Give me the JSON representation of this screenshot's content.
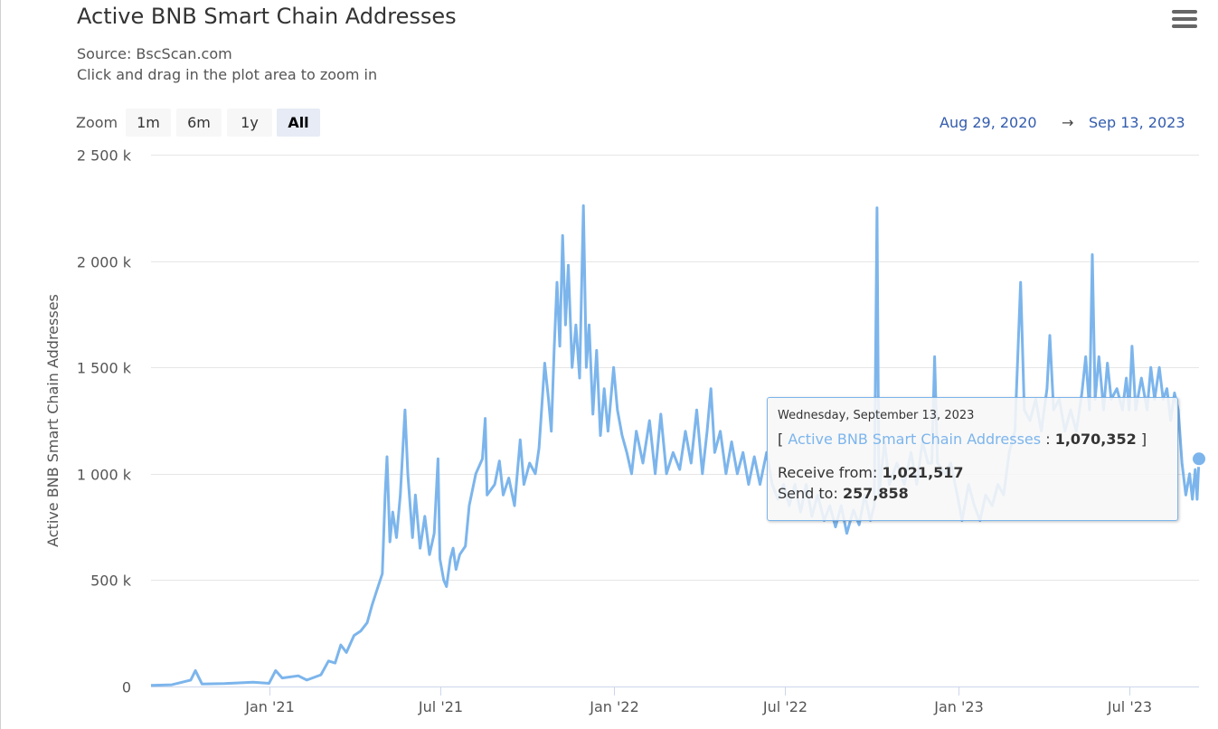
{
  "header": {
    "title": "Active BNB Smart Chain Addresses",
    "source": "Source: BscScan.com",
    "hint": "Click and drag in the plot area to zoom in"
  },
  "range_selector": {
    "zoom_label": "Zoom",
    "buttons": [
      {
        "label": "1m",
        "active": false
      },
      {
        "label": "6m",
        "active": false
      },
      {
        "label": "1y",
        "active": false
      },
      {
        "label": "All",
        "active": true
      }
    ],
    "from": "Aug 29, 2020",
    "arrow": "→",
    "to": "Sep 13, 2023"
  },
  "tooltip": {
    "date": "Wednesday, September 13, 2023",
    "open_bracket": "[",
    "series_name": "Active BNB Smart Chain Addresses",
    "sep": ":",
    "value": "1,070,352",
    "close_bracket": "]",
    "receive_label": "Receive from:",
    "receive_value": "1,021,517",
    "send_label": "Send to:",
    "send_value": "257,858"
  },
  "chart_data": {
    "type": "line",
    "title": "Active BNB Smart Chain Addresses",
    "subtitle": "Source: BscScan.com",
    "ylabel": "Active BNB Smart Chain Addresses",
    "xlabel": "",
    "x_range": [
      "2020-08-29",
      "2023-09-13"
    ],
    "ylim": [
      0,
      2500000
    ],
    "y_ticks": [
      {
        "value": 0,
        "label": "0"
      },
      {
        "value": 500000,
        "label": "500 k"
      },
      {
        "value": 1000000,
        "label": "1 000 k"
      },
      {
        "value": 1500000,
        "label": "1 500 k"
      },
      {
        "value": 2000000,
        "label": "2 000 k"
      },
      {
        "value": 2500000,
        "label": "2 500 k"
      }
    ],
    "x_ticks": [
      {
        "date": "2021-01-01",
        "label": "Jan '21"
      },
      {
        "date": "2021-07-01",
        "label": "Jul '21"
      },
      {
        "date": "2022-01-01",
        "label": "Jan '22"
      },
      {
        "date": "2022-07-01",
        "label": "Jul '22"
      },
      {
        "date": "2023-01-01",
        "label": "Jan '23"
      },
      {
        "date": "2023-07-01",
        "label": "Jul '23"
      }
    ],
    "grid": true,
    "color": "#7cb5ec",
    "series": [
      {
        "values": [
          [
            "2020-08-29",
            5000
          ],
          [
            "2020-09-20",
            8000
          ],
          [
            "2020-10-10",
            30000
          ],
          [
            "2020-10-15",
            75000
          ],
          [
            "2020-10-22",
            12000
          ],
          [
            "2020-11-15",
            14000
          ],
          [
            "2020-12-15",
            20000
          ],
          [
            "2021-01-01",
            15000
          ],
          [
            "2021-01-08",
            75000
          ],
          [
            "2021-01-15",
            40000
          ],
          [
            "2021-02-01",
            50000
          ],
          [
            "2021-02-10",
            30000
          ],
          [
            "2021-02-25",
            55000
          ],
          [
            "2021-03-05",
            120000
          ],
          [
            "2021-03-12",
            110000
          ],
          [
            "2021-03-18",
            195000
          ],
          [
            "2021-03-24",
            160000
          ],
          [
            "2021-04-01",
            240000
          ],
          [
            "2021-04-08",
            260000
          ],
          [
            "2021-04-15",
            300000
          ],
          [
            "2021-04-20",
            380000
          ],
          [
            "2021-04-25",
            450000
          ],
          [
            "2021-05-01",
            530000
          ],
          [
            "2021-05-04",
            900000
          ],
          [
            "2021-05-06",
            1080000
          ],
          [
            "2021-05-09",
            680000
          ],
          [
            "2021-05-12",
            820000
          ],
          [
            "2021-05-16",
            700000
          ],
          [
            "2021-05-20",
            900000
          ],
          [
            "2021-05-25",
            1300000
          ],
          [
            "2021-05-28",
            1000000
          ],
          [
            "2021-06-02",
            700000
          ],
          [
            "2021-06-05",
            900000
          ],
          [
            "2021-06-10",
            650000
          ],
          [
            "2021-06-15",
            800000
          ],
          [
            "2021-06-20",
            620000
          ],
          [
            "2021-06-25",
            720000
          ],
          [
            "2021-06-29",
            1070000
          ],
          [
            "2021-07-01",
            600000
          ],
          [
            "2021-07-05",
            500000
          ],
          [
            "2021-07-08",
            470000
          ],
          [
            "2021-07-12",
            600000
          ],
          [
            "2021-07-15",
            650000
          ],
          [
            "2021-07-18",
            550000
          ],
          [
            "2021-07-22",
            620000
          ],
          [
            "2021-07-28",
            660000
          ],
          [
            "2021-08-01",
            850000
          ],
          [
            "2021-08-08",
            1000000
          ],
          [
            "2021-08-15",
            1070000
          ],
          [
            "2021-08-18",
            1260000
          ],
          [
            "2021-08-20",
            900000
          ],
          [
            "2021-08-28",
            950000
          ],
          [
            "2021-09-02",
            1060000
          ],
          [
            "2021-09-06",
            900000
          ],
          [
            "2021-09-12",
            980000
          ],
          [
            "2021-09-18",
            850000
          ],
          [
            "2021-09-24",
            1160000
          ],
          [
            "2021-09-28",
            950000
          ],
          [
            "2021-10-04",
            1050000
          ],
          [
            "2021-10-10",
            1000000
          ],
          [
            "2021-10-14",
            1120000
          ],
          [
            "2021-10-20",
            1520000
          ],
          [
            "2021-10-24",
            1350000
          ],
          [
            "2021-10-27",
            1200000
          ],
          [
            "2021-10-30",
            1580000
          ],
          [
            "2021-11-02",
            1900000
          ],
          [
            "2021-11-05",
            1600000
          ],
          [
            "2021-11-08",
            2120000
          ],
          [
            "2021-11-11",
            1700000
          ],
          [
            "2021-11-14",
            1980000
          ],
          [
            "2021-11-18",
            1500000
          ],
          [
            "2021-11-22",
            1700000
          ],
          [
            "2021-11-26",
            1450000
          ],
          [
            "2021-11-30",
            2260000
          ],
          [
            "2021-12-03",
            1500000
          ],
          [
            "2021-12-06",
            1700000
          ],
          [
            "2021-12-10",
            1280000
          ],
          [
            "2021-12-14",
            1580000
          ],
          [
            "2021-12-18",
            1180000
          ],
          [
            "2021-12-22",
            1400000
          ],
          [
            "2021-12-26",
            1200000
          ],
          [
            "2022-01-01",
            1500000
          ],
          [
            "2022-01-05",
            1300000
          ],
          [
            "2022-01-10",
            1180000
          ],
          [
            "2022-01-15",
            1100000
          ],
          [
            "2022-01-20",
            1000000
          ],
          [
            "2022-01-25",
            1200000
          ],
          [
            "2022-02-01",
            1050000
          ],
          [
            "2022-02-08",
            1250000
          ],
          [
            "2022-02-14",
            1000000
          ],
          [
            "2022-02-20",
            1280000
          ],
          [
            "2022-02-26",
            1000000
          ],
          [
            "2022-03-05",
            1100000
          ],
          [
            "2022-03-12",
            1020000
          ],
          [
            "2022-03-18",
            1200000
          ],
          [
            "2022-03-24",
            1050000
          ],
          [
            "2022-03-30",
            1300000
          ],
          [
            "2022-04-05",
            1000000
          ],
          [
            "2022-04-10",
            1200000
          ],
          [
            "2022-04-14",
            1400000
          ],
          [
            "2022-04-18",
            1100000
          ],
          [
            "2022-04-24",
            1200000
          ],
          [
            "2022-04-30",
            1000000
          ],
          [
            "2022-05-06",
            1150000
          ],
          [
            "2022-05-12",
            1000000
          ],
          [
            "2022-05-18",
            1100000
          ],
          [
            "2022-05-24",
            950000
          ],
          [
            "2022-05-30",
            1080000
          ],
          [
            "2022-06-05",
            950000
          ],
          [
            "2022-06-12",
            1100000
          ],
          [
            "2022-06-18",
            950000
          ],
          [
            "2022-06-24",
            880000
          ],
          [
            "2022-06-30",
            950000
          ],
          [
            "2022-07-06",
            850000
          ],
          [
            "2022-07-12",
            950000
          ],
          [
            "2022-07-18",
            820000
          ],
          [
            "2022-07-24",
            950000
          ],
          [
            "2022-07-30",
            800000
          ],
          [
            "2022-08-05",
            900000
          ],
          [
            "2022-08-12",
            780000
          ],
          [
            "2022-08-18",
            850000
          ],
          [
            "2022-08-24",
            750000
          ],
          [
            "2022-08-30",
            850000
          ],
          [
            "2022-09-05",
            720000
          ],
          [
            "2022-09-12",
            830000
          ],
          [
            "2022-09-18",
            760000
          ],
          [
            "2022-09-24",
            900000
          ],
          [
            "2022-09-30",
            780000
          ],
          [
            "2022-10-04",
            850000
          ],
          [
            "2022-10-07",
            2250000
          ],
          [
            "2022-10-09",
            900000
          ],
          [
            "2022-10-15",
            1150000
          ],
          [
            "2022-10-20",
            950000
          ],
          [
            "2022-10-28",
            1050000
          ],
          [
            "2022-11-05",
            950000
          ],
          [
            "2022-11-12",
            1100000
          ],
          [
            "2022-11-18",
            950000
          ],
          [
            "2022-11-24",
            1150000
          ],
          [
            "2022-11-30",
            1050000
          ],
          [
            "2022-12-04",
            1050000
          ],
          [
            "2022-12-07",
            1550000
          ],
          [
            "2022-12-10",
            1050000
          ],
          [
            "2022-12-18",
            1000000
          ],
          [
            "2022-12-24",
            1050000
          ],
          [
            "2022-12-31",
            900000
          ],
          [
            "2023-01-05",
            780000
          ],
          [
            "2023-01-12",
            950000
          ],
          [
            "2023-01-18",
            850000
          ],
          [
            "2023-01-24",
            780000
          ],
          [
            "2023-01-30",
            900000
          ],
          [
            "2023-02-06",
            850000
          ],
          [
            "2023-02-12",
            950000
          ],
          [
            "2023-02-18",
            900000
          ],
          [
            "2023-02-24",
            1100000
          ],
          [
            "2023-03-02",
            1200000
          ],
          [
            "2023-03-08",
            1900000
          ],
          [
            "2023-03-12",
            1300000
          ],
          [
            "2023-03-18",
            1250000
          ],
          [
            "2023-03-24",
            1350000
          ],
          [
            "2023-03-30",
            1200000
          ],
          [
            "2023-04-05",
            1400000
          ],
          [
            "2023-04-08",
            1650000
          ],
          [
            "2023-04-12",
            1300000
          ],
          [
            "2023-04-18",
            1350000
          ],
          [
            "2023-04-24",
            1200000
          ],
          [
            "2023-04-30",
            1300000
          ],
          [
            "2023-05-06",
            1200000
          ],
          [
            "2023-05-12",
            1380000
          ],
          [
            "2023-05-16",
            1550000
          ],
          [
            "2023-05-20",
            1300000
          ],
          [
            "2023-05-23",
            2030000
          ],
          [
            "2023-05-26",
            1350000
          ],
          [
            "2023-05-30",
            1550000
          ],
          [
            "2023-06-04",
            1300000
          ],
          [
            "2023-06-08",
            1520000
          ],
          [
            "2023-06-12",
            1350000
          ],
          [
            "2023-06-18",
            1400000
          ],
          [
            "2023-06-24",
            1300000
          ],
          [
            "2023-06-28",
            1450000
          ],
          [
            "2023-07-01",
            1300000
          ],
          [
            "2023-07-04",
            1600000
          ],
          [
            "2023-07-08",
            1300000
          ],
          [
            "2023-07-14",
            1450000
          ],
          [
            "2023-07-20",
            1300000
          ],
          [
            "2023-07-24",
            1500000
          ],
          [
            "2023-07-28",
            1350000
          ],
          [
            "2023-08-02",
            1500000
          ],
          [
            "2023-08-06",
            1350000
          ],
          [
            "2023-08-10",
            1400000
          ],
          [
            "2023-08-14",
            1250000
          ],
          [
            "2023-08-18",
            1380000
          ],
          [
            "2023-08-22",
            1300000
          ],
          [
            "2023-08-26",
            1050000
          ],
          [
            "2023-08-30",
            900000
          ],
          [
            "2023-09-03",
            1000000
          ],
          [
            "2023-09-06",
            880000
          ],
          [
            "2023-09-09",
            1020000
          ],
          [
            "2023-09-11",
            880000
          ],
          [
            "2023-09-13",
            1070352
          ]
        ]
      }
    ]
  }
}
